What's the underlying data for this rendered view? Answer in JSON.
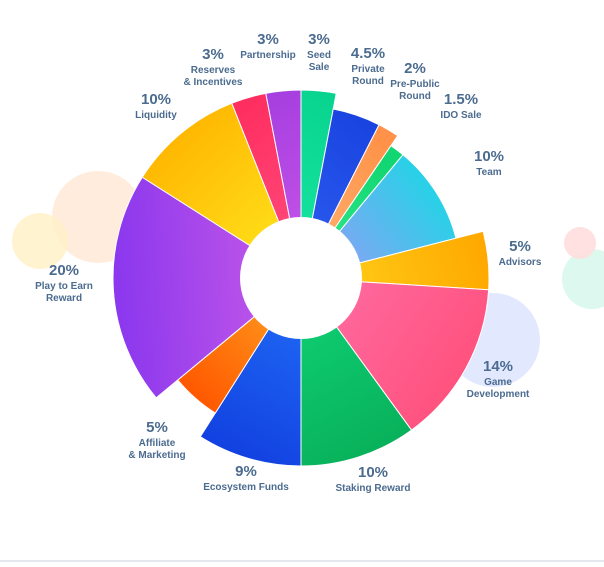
{
  "chart_data": {
    "type": "pie",
    "donut": true,
    "legend": "none",
    "slices": [
      {
        "key": "seed",
        "percent_label": "3%",
        "label_lines": [
          "Seed",
          "Sale"
        ],
        "value": 3,
        "color": "#18e6a0",
        "color2": "#08d48f"
      },
      {
        "key": "private",
        "percent_label": "4.5%",
        "label_lines": [
          "Private",
          "Round"
        ],
        "value": 4.5,
        "color": "#2b5cf0",
        "color2": "#1a44e0"
      },
      {
        "key": "prepublic",
        "percent_label": "2%",
        "label_lines": [
          "Pre-Public",
          "Round"
        ],
        "value": 2,
        "color": "#ffb070",
        "color2": "#ff9248"
      },
      {
        "key": "ido",
        "percent_label": "1.5%",
        "label_lines": [
          "IDO Sale"
        ],
        "value": 1.5,
        "color": "#2fe88a",
        "color2": "#12d672"
      },
      {
        "key": "team",
        "percent_label": "10%",
        "label_lines": [
          "Team"
        ],
        "value": 10,
        "color": "#8ea0f5",
        "color2": "#1ed6e6"
      },
      {
        "key": "advisors",
        "percent_label": "5%",
        "label_lines": [
          "Advisors"
        ],
        "value": 5,
        "color": "#ffd21a",
        "color2": "#ffa800"
      },
      {
        "key": "game",
        "percent_label": "14%",
        "label_lines": [
          "Game",
          "Development"
        ],
        "value": 14,
        "color": "#ff6aa0",
        "color2": "#ff4f7a"
      },
      {
        "key": "staking",
        "percent_label": "10%",
        "label_lines": [
          "Staking Reward"
        ],
        "value": 10,
        "color": "#0fcf73",
        "color2": "#08b05a"
      },
      {
        "key": "ecosystem",
        "percent_label": "9%",
        "label_lines": [
          "Ecosystem Funds"
        ],
        "value": 9,
        "color": "#1f6af5",
        "color2": "#1240e0"
      },
      {
        "key": "affiliate",
        "percent_label": "5%",
        "label_lines": [
          "Affiliate",
          "& Marketing"
        ],
        "value": 5,
        "color": "#ff9a1e",
        "color2": "#ff5a00"
      },
      {
        "key": "playtoearn",
        "percent_label": "20%",
        "label_lines": [
          "Play to Earn",
          "Reward"
        ],
        "value": 20,
        "color": "#c95be8",
        "color2": "#8a37ee"
      },
      {
        "key": "liquidity",
        "percent_label": "10%",
        "label_lines": [
          "Liquidity"
        ],
        "value": 10,
        "color": "#ffe01a",
        "color2": "#ffb400"
      },
      {
        "key": "reserves",
        "percent_label": "3%",
        "label_lines": [
          "Reserves",
          "& Incentives"
        ],
        "value": 3,
        "color": "#ff4b7d",
        "color2": "#ff2e60"
      },
      {
        "key": "partnership",
        "percent_label": "3%",
        "label_lines": [
          "Partnership"
        ],
        "value": 3,
        "color": "#c855e8",
        "color2": "#a63fe0"
      }
    ]
  }
}
